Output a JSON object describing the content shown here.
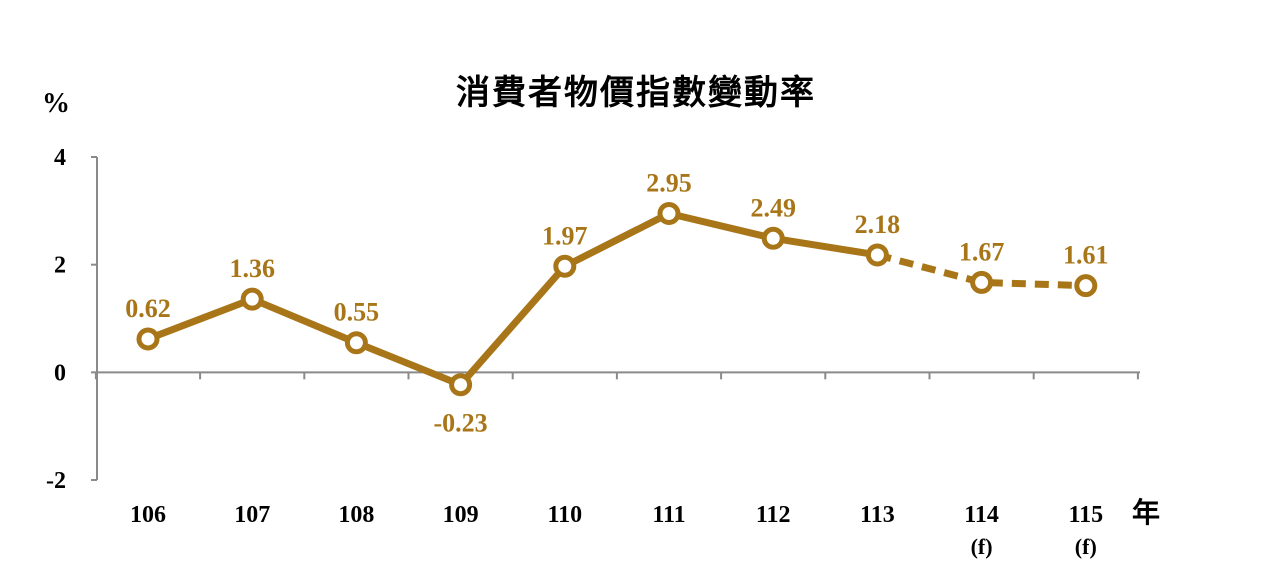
{
  "chart_data": {
    "type": "line",
    "title": "消費者物價指數變動率",
    "ylabel": "%",
    "xlabel": "年",
    "ylim": [
      -2,
      4
    ],
    "yticks": [
      "4",
      "2",
      "0",
      "-2"
    ],
    "categories": [
      "106",
      "107",
      "108",
      "109",
      "110",
      "111",
      "112",
      "113",
      "114",
      "115"
    ],
    "category_notes": [
      "",
      "",
      "",
      "",
      "",
      "",
      "",
      "",
      "(f)",
      "(f)"
    ],
    "series": [
      {
        "values": [
          0.62,
          1.36,
          0.55,
          -0.23,
          1.97,
          2.95,
          2.49,
          2.18,
          1.67,
          1.61
        ],
        "labels": [
          "0.62",
          "1.36",
          "0.55",
          "-0.23",
          "1.97",
          "2.95",
          "2.49",
          "2.18",
          "1.67",
          "1.61"
        ],
        "forecast_from_index": 7
      }
    ],
    "color": "#A87618",
    "grid": false
  }
}
